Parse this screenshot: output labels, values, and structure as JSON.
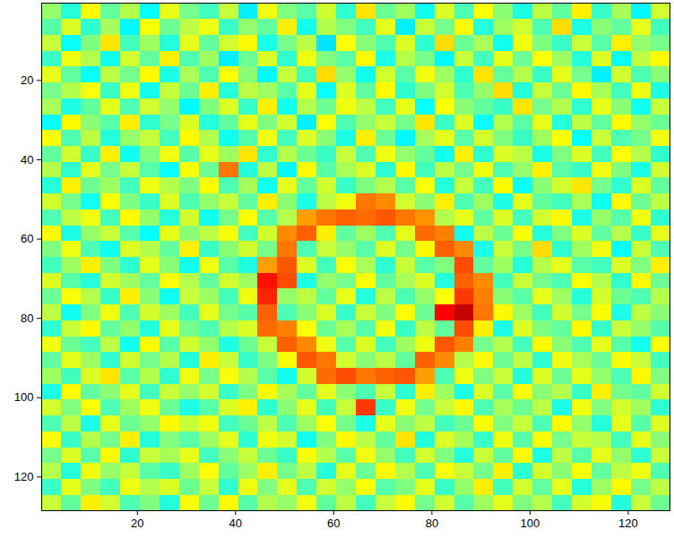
{
  "chart_data": {
    "type": "heatmap",
    "xlim": [
      0.5,
      128.5
    ],
    "ylim": [
      0.5,
      128.5
    ],
    "xticks": [
      20,
      40,
      60,
      80,
      100,
      120
    ],
    "yticks": [
      20,
      40,
      60,
      80,
      100,
      120
    ],
    "zlim": [
      0,
      100
    ],
    "cells": [
      [
        52,
        41,
        63,
        47,
        55,
        38,
        60,
        49,
        44,
        57,
        36,
        61,
        50,
        46,
        58,
        42,
        65,
        48,
        53,
        39,
        59,
        45,
        62,
        51,
        40,
        56,
        47,
        64,
        43,
        54,
        37,
        58
      ],
      [
        46,
        59,
        42,
        54,
        37,
        62,
        48,
        56,
        61,
        43,
        52,
        47,
        64,
        39,
        55,
        50,
        44,
        60,
        36,
        57,
        49,
        63,
        41,
        53,
        58,
        45,
        66,
        40,
        51,
        47,
        60,
        44
      ],
      [
        57,
        38,
        50,
        65,
        44,
        53,
        41,
        60,
        47,
        58,
        63,
        40,
        49,
        56,
        35,
        62,
        51,
        45,
        59,
        42,
        66,
        48,
        54,
        39,
        61,
        50,
        43,
        57,
        46,
        64,
        52,
        49
      ],
      [
        43,
        61,
        55,
        39,
        58,
        47,
        64,
        45,
        53,
        36,
        48,
        59,
        42,
        61,
        50,
        46,
        63,
        40,
        55,
        49,
        37,
        57,
        44,
        60,
        48,
        62,
        53,
        41,
        59,
        38,
        56,
        63
      ],
      [
        60,
        47,
        38,
        56,
        49,
        63,
        40,
        54,
        45,
        62,
        51,
        37,
        57,
        44,
        66,
        52,
        39,
        58,
        46,
        61,
        53,
        42,
        65,
        47,
        55,
        43,
        60,
        49,
        36,
        58,
        45,
        51
      ],
      [
        49,
        55,
        62,
        43,
        61,
        39,
        57,
        48,
        64,
        41,
        56,
        53,
        46,
        60,
        38,
        59,
        47,
        63,
        42,
        50,
        58,
        45,
        52,
        66,
        41,
        57,
        48,
        63,
        54,
        44,
        61,
        40
      ],
      [
        54,
        40,
        47,
        60,
        45,
        58,
        52,
        37,
        50,
        59,
        43,
        64,
        39,
        55,
        48,
        61,
        56,
        44,
        60,
        38,
        62,
        51,
        47,
        43,
        65,
        49,
        55,
        42,
        60,
        51,
        39,
        57
      ],
      [
        38,
        63,
        51,
        46,
        64,
        42,
        49,
        59,
        41,
        47,
        60,
        50,
        58,
        36,
        62,
        45,
        52,
        57,
        49,
        65,
        43,
        59,
        38,
        55,
        46,
        60,
        41,
        56,
        47,
        63,
        52,
        48
      ],
      [
        62,
        45,
        56,
        41,
        52,
        57,
        44,
        63,
        55,
        39,
        46,
        61,
        44,
        59,
        51,
        40,
        64,
        48,
        37,
        54,
        60,
        46,
        58,
        50,
        43,
        53,
        62,
        38,
        57,
        45,
        49,
        61
      ],
      [
        47,
        58,
        43,
        64,
        39,
        50,
        61,
        46,
        60,
        53,
        65,
        42,
        55,
        48,
        43,
        57,
        45,
        61,
        52,
        47,
        39,
        64,
        42,
        59,
        56,
        40,
        50,
        59,
        44,
        62,
        55,
        42
      ],
      [
        55,
        42,
        60,
        49,
        57,
        46,
        38,
        62,
        48,
        76,
        41,
        56,
        37,
        63,
        46,
        54,
        59,
        42,
        63,
        44,
        56,
        49,
        61,
        45,
        52,
        64,
        46,
        43,
        61,
        50,
        40,
        58
      ],
      [
        41,
        64,
        48,
        53,
        44,
        61,
        55,
        50,
        63,
        45,
        54,
        39,
        60,
        47,
        58,
        43,
        50,
        55,
        46,
        62,
        41,
        57,
        44,
        63,
        38,
        51,
        58,
        65,
        49,
        42,
        59,
        47
      ],
      [
        58,
        49,
        39,
        62,
        50,
        43,
        59,
        45,
        52,
        57,
        47,
        64,
        51,
        40,
        56,
        61,
        76,
        74,
        58,
        51,
        64,
        45,
        53,
        40,
        60,
        47,
        44,
        54,
        39,
        63,
        48,
        56
      ],
      [
        45,
        56,
        61,
        44,
        63,
        52,
        41,
        58,
        39,
        49,
        62,
        46,
        55,
        72,
        76,
        78,
        77,
        79,
        76,
        73,
        55,
        60,
        47,
        59,
        44,
        58,
        63,
        40,
        52,
        46,
        61,
        42
      ],
      [
        63,
        40,
        52,
        57,
        46,
        38,
        60,
        51,
        56,
        62,
        44,
        58,
        74,
        78,
        64,
        47,
        53,
        45,
        60,
        77,
        75,
        39,
        56,
        48,
        62,
        41,
        50,
        59,
        47,
        55,
        43,
        60
      ],
      [
        50,
        61,
        45,
        39,
        59,
        55,
        47,
        64,
        43,
        51,
        58,
        49,
        76,
        45,
        57,
        52,
        46,
        59,
        49,
        63,
        78,
        74,
        40,
        57,
        49,
        66,
        42,
        53,
        61,
        38,
        57,
        45
      ],
      [
        44,
        53,
        64,
        50,
        42,
        60,
        51,
        39,
        61,
        46,
        40,
        72,
        79,
        59,
        44,
        62,
        54,
        42,
        57,
        46,
        50,
        80,
        47,
        53,
        41,
        55,
        60,
        46,
        44,
        59,
        50,
        64
      ],
      [
        59,
        46,
        41,
        58,
        53,
        47,
        62,
        55,
        47,
        58,
        53,
        86,
        80,
        40,
        52,
        49,
        62,
        47,
        54,
        59,
        41,
        78,
        74,
        44,
        57,
        49,
        45,
        62,
        55,
        42,
        63,
        48
      ],
      [
        48,
        62,
        55,
        43,
        64,
        51,
        39,
        57,
        53,
        44,
        61,
        84,
        52,
        56,
        47,
        60,
        41,
        56,
        45,
        52,
        62,
        82,
        75,
        51,
        46,
        60,
        53,
        41,
        58,
        48,
        45,
        55
      ],
      [
        56,
        39,
        50,
        61,
        45,
        58,
        53,
        44,
        60,
        49,
        46,
        78,
        45,
        51,
        59,
        43,
        57,
        50,
        62,
        48,
        88,
        93,
        76,
        63,
        53,
        44,
        58,
        49,
        62,
        40,
        56,
        51
      ],
      [
        42,
        57,
        63,
        47,
        52,
        41,
        60,
        49,
        45,
        55,
        59,
        77,
        75,
        62,
        48,
        54,
        46,
        61,
        43,
        56,
        47,
        80,
        64,
        40,
        59,
        50,
        47,
        63,
        43,
        57,
        52,
        46
      ],
      [
        61,
        48,
        44,
        56,
        39,
        63,
        46,
        58,
        52,
        40,
        48,
        57,
        78,
        74,
        61,
        46,
        59,
        44,
        53,
        61,
        79,
        75,
        49,
        55,
        44,
        63,
        51,
        45,
        60,
        46,
        39,
        62
      ],
      [
        47,
        60,
        53,
        42,
        58,
        49,
        55,
        41,
        64,
        57,
        43,
        50,
        62,
        79,
        76,
        58,
        51,
        56,
        47,
        78,
        74,
        55,
        62,
        48,
        56,
        42,
        61,
        54,
        48,
        62,
        57,
        44
      ],
      [
        53,
        44,
        59,
        65,
        46,
        55,
        42,
        61,
        49,
        62,
        55,
        46,
        39,
        58,
        77,
        80,
        76,
        78,
        79,
        72,
        45,
        61,
        50,
        57,
        41,
        59,
        48,
        60,
        52,
        45,
        63,
        50
      ],
      [
        40,
        63,
        47,
        51,
        60,
        44,
        57,
        52,
        58,
        43,
        50,
        63,
        54,
        47,
        60,
        51,
        45,
        57,
        42,
        64,
        53,
        40,
        59,
        46,
        62,
        51,
        55,
        43,
        64,
        49,
        47,
        58
      ],
      [
        58,
        50,
        62,
        45,
        53,
        61,
        48,
        40,
        46,
        59,
        64,
        42,
        51,
        60,
        44,
        57,
        82,
        43,
        61,
        49,
        57,
        63,
        45,
        54,
        48,
        56,
        40,
        61,
        50,
        58,
        53,
        42
      ],
      [
        45,
        56,
        40,
        60,
        48,
        52,
        63,
        57,
        61,
        44,
        48,
        56,
        45,
        53,
        62,
        49,
        40,
        60,
        51,
        56,
        44,
        48,
        62,
        50,
        57,
        45,
        63,
        52,
        41,
        60,
        46,
        59
      ],
      [
        62,
        43,
        55,
        49,
        64,
        41,
        50,
        46,
        53,
        60,
        42,
        61,
        58,
        39,
        50,
        63,
        56,
        47,
        65,
        41,
        59,
        54,
        43,
        61,
        46,
        62,
        49,
        57,
        55,
        44,
        60,
        51
      ],
      [
        49,
        59,
        46,
        63,
        42,
        57,
        54,
        60,
        44,
        51,
        57,
        48,
        43,
        62,
        55,
        46,
        61,
        52,
        44,
        58,
        50,
        41,
        57,
        47,
        63,
        40,
        56,
        46,
        60,
        52,
        42,
        57
      ],
      [
        55,
        41,
        61,
        52,
        57,
        46,
        43,
        53,
        62,
        47,
        53,
        64,
        49,
        56,
        41,
        60,
        48,
        63,
        55,
        45,
        62,
        57,
        49,
        64,
        42,
        58,
        51,
        62,
        47,
        56,
        61,
        45
      ],
      [
        43,
        60,
        50,
        44,
        61,
        55,
        59,
        48,
        57,
        42,
        61,
        50,
        60,
        45,
        58,
        52,
        62,
        46,
        50,
        60,
        43,
        52,
        64,
        44,
        58,
        47,
        60,
        41,
        53,
        63,
        49,
        56
      ],
      [
        57,
        47,
        64,
        58,
        45,
        50,
        41,
        62,
        48,
        63,
        46,
        55,
        52,
        61,
        47,
        56,
        44,
        57,
        62,
        49,
        58,
        46,
        53,
        60,
        50,
        55,
        44,
        58,
        62,
        41,
        57,
        48
      ]
    ]
  }
}
